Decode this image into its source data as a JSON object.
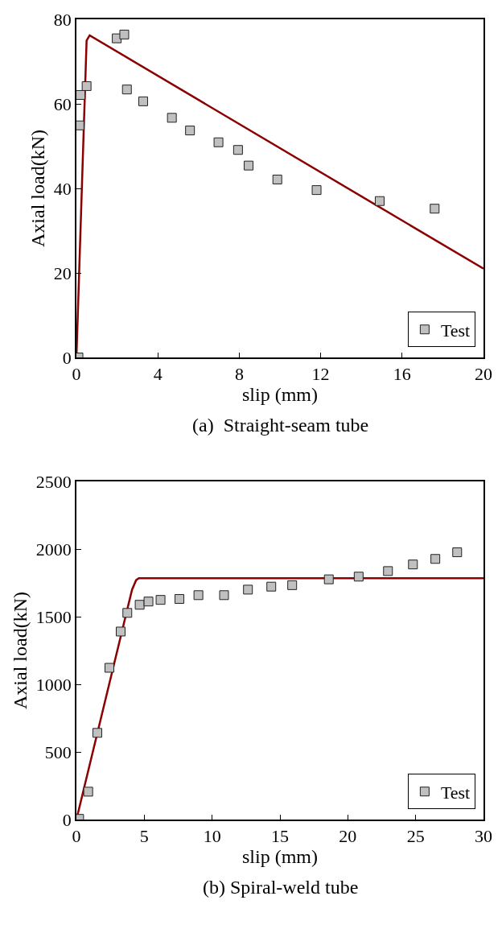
{
  "chart_data": [
    {
      "type": "scatter",
      "xlabel": "slip (mm)",
      "ylabel": "Axial load(kN)",
      "annotations": [
        "(a)  Straight-seam tube"
      ],
      "xlim": [
        0,
        20
      ],
      "xticks": [
        0,
        4,
        8,
        12,
        16,
        20
      ],
      "ylim": [
        0,
        80
      ],
      "yticks": [
        0,
        20,
        40,
        60,
        80
      ],
      "grid": false,
      "legend": "bottom right",
      "series": [
        {
          "name": "Test",
          "marker": "square",
          "color": "#c0c0c0",
          "x": [
            0.1,
            0.15,
            0.2,
            0.5,
            1.98,
            2.35,
            2.48,
            3.28,
            4.69,
            5.58,
            6.98,
            7.94,
            8.46,
            9.87,
            11.8,
            14.9,
            17.6
          ],
          "values": [
            0,
            54.9,
            62.1,
            64.2,
            75.5,
            76.4,
            63.4,
            60.6,
            56.7,
            53.7,
            50.9,
            49.1,
            45.4,
            42.1,
            39.6,
            37.0,
            35.2
          ]
        },
        {
          "type": "line",
          "color": "#8b0000",
          "x": [
            0,
            0.5,
            0.65,
            20
          ],
          "values": [
            0,
            75,
            76.2,
            21
          ]
        }
      ]
    },
    {
      "type": "scatter",
      "xlabel": "slip (mm)",
      "ylabel": "Axial load(kN)",
      "annotations": [
        "(b) Spiral-weld tube"
      ],
      "xlim": [
        0,
        30
      ],
      "xticks": [
        0,
        5,
        10,
        15,
        20,
        25,
        30
      ],
      "ylim": [
        0,
        2500
      ],
      "yticks": [
        0,
        500,
        1000,
        1500,
        2000,
        2500
      ],
      "grid": false,
      "legend": "bottom right",
      "series": [
        {
          "name": "Test",
          "marker": "square",
          "color": "#c0c0c0",
          "x": [
            0.2,
            0.87,
            1.54,
            2.43,
            3.26,
            3.75,
            4.66,
            5.31,
            6.2,
            7.59,
            8.99,
            10.88,
            12.64,
            14.36,
            15.9,
            18.6,
            20.8,
            22.96,
            24.8,
            26.45,
            28.06
          ],
          "values": [
            5,
            206,
            641,
            1122,
            1390,
            1528,
            1588,
            1612,
            1624,
            1631,
            1659,
            1659,
            1700,
            1722,
            1733,
            1776,
            1796,
            1837,
            1886,
            1927,
            1976
          ]
        },
        {
          "type": "line",
          "color": "#8b0000",
          "x": [
            0,
            4.1,
            4.4,
            4.6,
            30
          ],
          "values": [
            0,
            1700,
            1770,
            1784,
            1784
          ]
        }
      ]
    }
  ]
}
